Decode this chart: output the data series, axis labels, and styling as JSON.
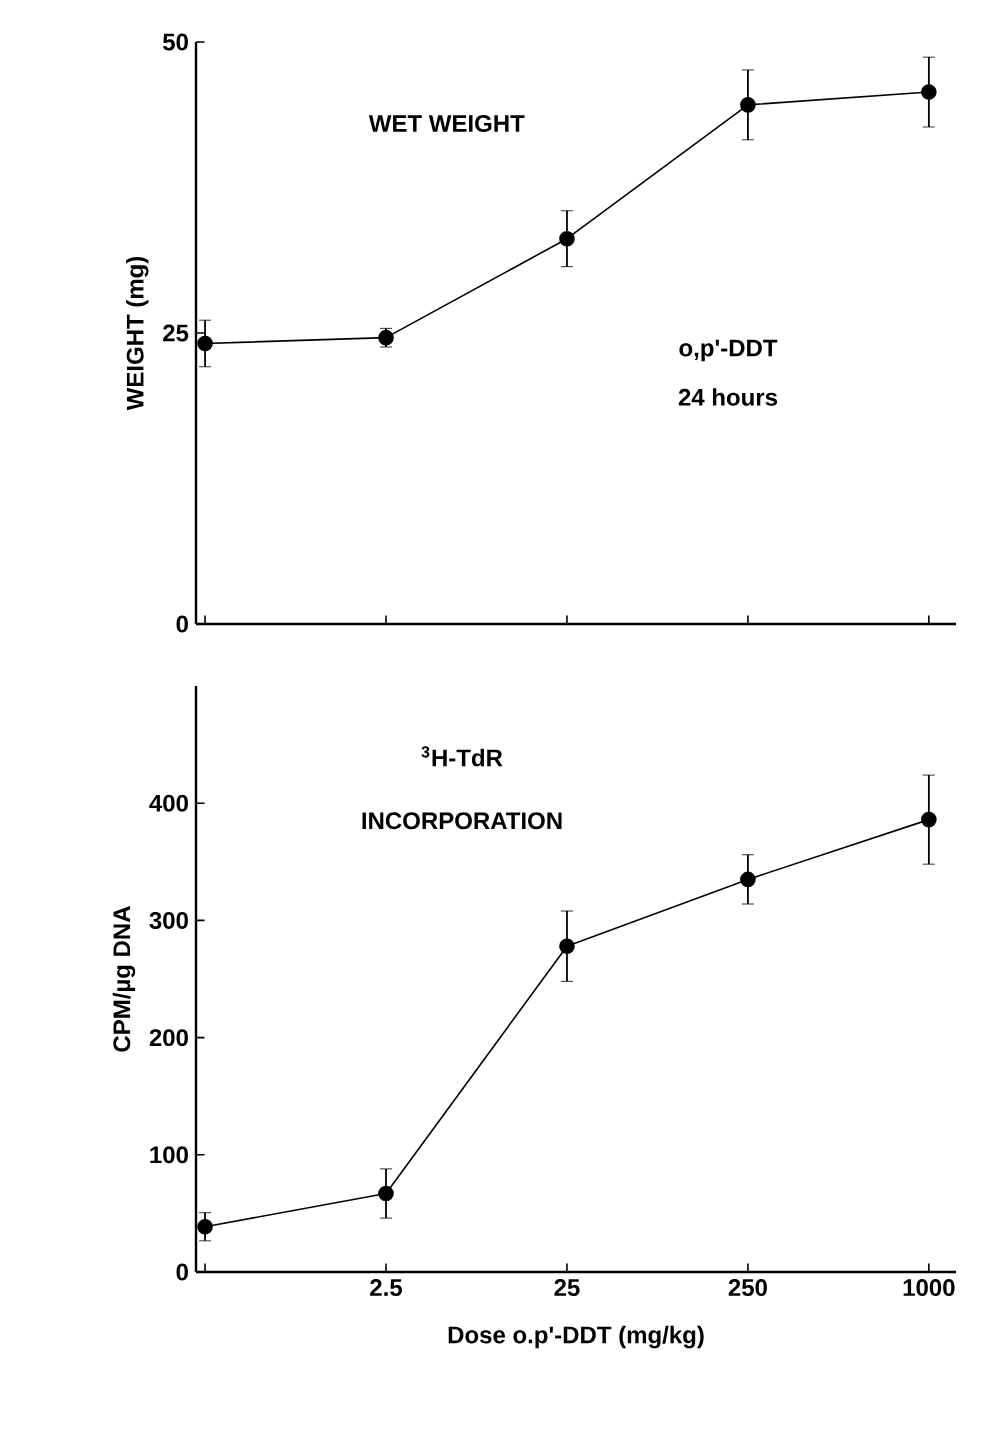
{
  "chart_data": [
    {
      "type": "line",
      "categories": [
        null,
        "2.5",
        "25",
        "250",
        "1000"
      ],
      "ylabel": "WEIGHT (mg)",
      "ylim": [
        0,
        50
      ],
      "yticks": [
        0,
        25,
        50
      ],
      "tick_labels": "y",
      "marker": "circle",
      "line_style": "solid",
      "annotations": [
        "WET WEIGHT",
        "o,p'-DDT",
        "24 hours"
      ],
      "series": [
        {
          "color": "#000000",
          "values": [
            24.1,
            24.6,
            33.1,
            44.6,
            45.7
          ],
          "errors": [
            2,
            0.8,
            2.4,
            3,
            3
          ]
        }
      ]
    },
    {
      "type": "line",
      "categories": [
        null,
        "2.5",
        "25",
        "250",
        "1000"
      ],
      "xlabel": "Dose   o.p'-DDT   (mg/kg)",
      "ylabel": "CPM/µg DNA",
      "ylim": [
        0,
        500
      ],
      "yticks": [
        0,
        100,
        200,
        300,
        400
      ],
      "marker": "circle",
      "line_style": "solid",
      "annotations": [
        "$^{3}$H-TdR",
        "INCORPORATION"
      ],
      "series": [
        {
          "color": "#000000",
          "values": [
            38.6,
            67,
            278,
            335,
            386
          ],
          "errors": [
            12,
            21,
            30,
            21,
            38
          ]
        }
      ]
    }
  ]
}
